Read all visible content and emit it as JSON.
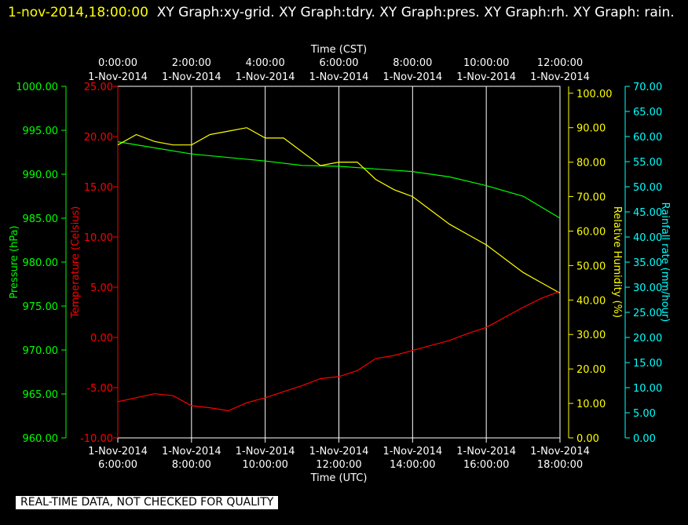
{
  "header": {
    "timestamp": "1-nov-2014,18:00:00",
    "graphs_text": "XY Graph:xy-grid.  XY Graph:tdry.  XY Graph:pres.  XY Graph:rh.  XY Graph: rain."
  },
  "notice": "REAL-TIME DATA, NOT CHECKED FOR QUALITY",
  "colors": {
    "background": "#000000",
    "grid": "#ffffff",
    "pressure": "#00ff00",
    "temperature": "#ff0000",
    "humidity": "#ffff00",
    "rainfall": "#00ffff",
    "title": "#ffffff",
    "timestamp": "#ffff00"
  },
  "chart_data": {
    "type": "line",
    "grid": true,
    "x_bottom": {
      "label": "Time (UTC)",
      "ticks": [
        {
          "date": "1-Nov-2014",
          "time": "6:00:00"
        },
        {
          "date": "1-Nov-2014",
          "time": "8:00:00"
        },
        {
          "date": "1-Nov-2014",
          "time": "10:00:00"
        },
        {
          "date": "1-Nov-2014",
          "time": "12:00:00"
        },
        {
          "date": "1-Nov-2014",
          "time": "14:00:00"
        },
        {
          "date": "1-Nov-2014",
          "time": "16:00:00"
        },
        {
          "date": "1-Nov-2014",
          "time": "18:00:00"
        }
      ]
    },
    "x_top": {
      "label": "Time (CST)",
      "ticks": [
        {
          "time": "0:00:00",
          "date": "1-Nov-2014"
        },
        {
          "time": "2:00:00",
          "date": "1-Nov-2014"
        },
        {
          "time": "4:00:00",
          "date": "1-Nov-2014"
        },
        {
          "time": "6:00:00",
          "date": "1-Nov-2014"
        },
        {
          "time": "8:00:00",
          "date": "1-Nov-2014"
        },
        {
          "time": "10:00:00",
          "date": "1-Nov-2014"
        },
        {
          "time": "12:00:00",
          "date": "1-Nov-2014"
        }
      ]
    },
    "axes": {
      "pressure": {
        "label": "Pressure (hPa)",
        "range": [
          960,
          1000
        ],
        "ticks": [
          "1000.00",
          "995.00",
          "990.00",
          "985.00",
          "980.00",
          "975.00",
          "970.00",
          "965.00",
          "960.00"
        ]
      },
      "temperature": {
        "label": "Temperature (Celsius)",
        "range": [
          -10,
          25
        ],
        "ticks": [
          "25.00",
          "20.00",
          "15.00",
          "10.00",
          "5.00",
          "0.00",
          "-5.00",
          "-10.00"
        ]
      },
      "humidity": {
        "label": "Relative Humidity (%)",
        "range": [
          0,
          102
        ],
        "ticks": [
          "100.00",
          "90.00",
          "80.00",
          "70.00",
          "60.00",
          "50.00",
          "40.00",
          "30.00",
          "20.00",
          "10.00",
          "0.00"
        ]
      },
      "rainfall": {
        "label": "Rainfall rate (mm/hour)",
        "range": [
          0,
          70
        ],
        "ticks": [
          "70.00",
          "65.00",
          "60.00",
          "55.00",
          "50.00",
          "45.00",
          "40.00",
          "35.00",
          "30.00",
          "25.00",
          "20.00",
          "15.00",
          "10.00",
          "5.00",
          "0.00"
        ]
      }
    },
    "series": [
      {
        "name": "Pressure (hPa)",
        "axis": "pressure",
        "x": [
          "2014-11-01T06:00",
          "2014-11-01T07:00",
          "2014-11-01T08:00",
          "2014-11-01T09:00",
          "2014-11-01T10:00",
          "2014-11-01T11:00",
          "2014-11-01T12:00",
          "2014-11-01T13:00",
          "2014-11-01T14:00",
          "2014-11-01T15:00",
          "2014-11-01T16:00",
          "2014-11-01T17:00",
          "2014-11-01T18:00"
        ],
        "y": [
          993.7,
          993.0,
          992.3,
          991.9,
          991.5,
          991.0,
          990.9,
          990.6,
          990.3,
          989.7,
          988.7,
          987.5,
          985.0
        ]
      },
      {
        "name": "Relative Humidity (%)",
        "axis": "humidity",
        "x": [
          "2014-11-01T06:00",
          "2014-11-01T06:30",
          "2014-11-01T07:00",
          "2014-11-01T07:30",
          "2014-11-01T08:00",
          "2014-11-01T08:30",
          "2014-11-01T09:00",
          "2014-11-01T09:30",
          "2014-11-01T10:00",
          "2014-11-01T10:30",
          "2014-11-01T11:00",
          "2014-11-01T11:30",
          "2014-11-01T12:00",
          "2014-11-01T12:30",
          "2014-11-01T13:00",
          "2014-11-01T13:30",
          "2014-11-01T14:00",
          "2014-11-01T14:30",
          "2014-11-01T15:00",
          "2014-11-01T15:30",
          "2014-11-01T16:00",
          "2014-11-01T16:30",
          "2014-11-01T17:00",
          "2014-11-01T17:30",
          "2014-11-01T18:00"
        ],
        "y": [
          85,
          88,
          86,
          85,
          85,
          88,
          89,
          90,
          87,
          87,
          83,
          79,
          80,
          80,
          75,
          72,
          70,
          66,
          62,
          59,
          56,
          52,
          48,
          45,
          42
        ]
      },
      {
        "name": "Temperature (Celsius)",
        "axis": "temperature",
        "x": [
          "2014-11-01T06:00",
          "2014-11-01T06:30",
          "2014-11-01T07:00",
          "2014-11-01T07:30",
          "2014-11-01T08:00",
          "2014-11-01T08:30",
          "2014-11-01T09:00",
          "2014-11-01T09:30",
          "2014-11-01T10:00",
          "2014-11-01T10:30",
          "2014-11-01T11:00",
          "2014-11-01T11:30",
          "2014-11-01T12:00",
          "2014-11-01T12:30",
          "2014-11-01T13:00",
          "2014-11-01T13:30",
          "2014-11-01T14:00",
          "2014-11-01T14:30",
          "2014-11-01T15:00",
          "2014-11-01T15:30",
          "2014-11-01T16:00",
          "2014-11-01T16:30",
          "2014-11-01T17:00",
          "2014-11-01T17:30",
          "2014-11-01T18:00"
        ],
        "y": [
          -6.4,
          -6.0,
          -5.6,
          -5.8,
          -6.8,
          -7.0,
          -7.3,
          -6.5,
          -6.0,
          -5.4,
          -4.8,
          -4.1,
          -3.9,
          -3.3,
          -2.1,
          -1.8,
          -1.3,
          -0.8,
          -0.3,
          0.4,
          1.0,
          2.0,
          3.0,
          3.9,
          4.6
        ]
      }
    ]
  }
}
